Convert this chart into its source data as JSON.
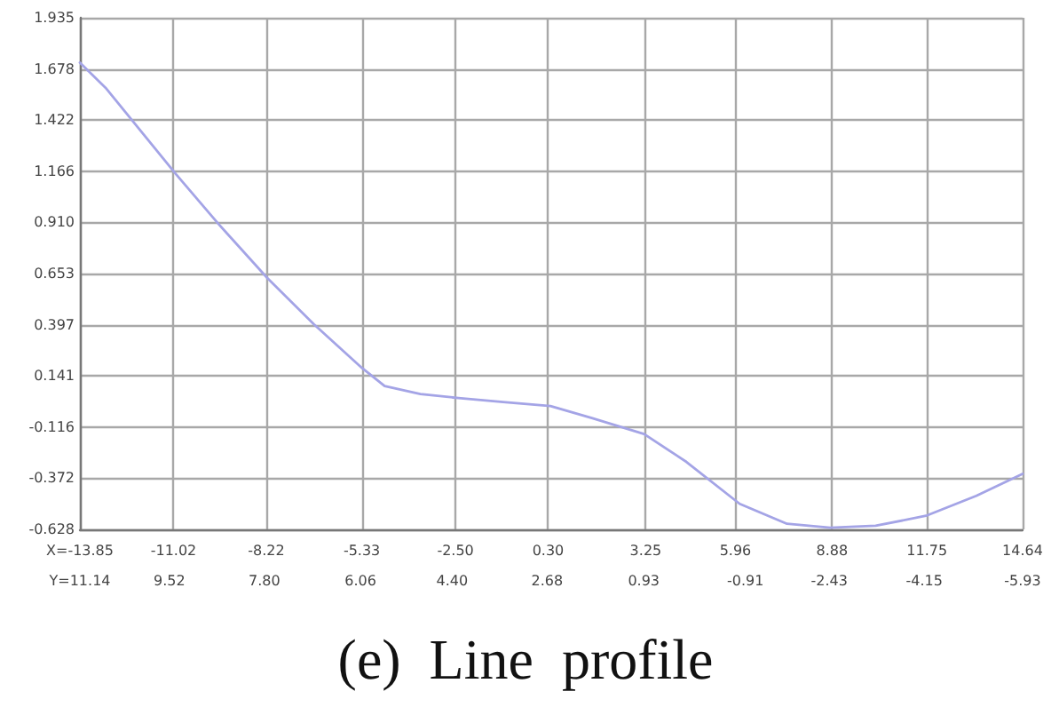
{
  "chart_data": {
    "type": "line",
    "title": "(e)  Line  profile",
    "x": [
      -13.85,
      -13.05,
      -10.94,
      -9.65,
      -8.18,
      -6.78,
      -5.32,
      -4.64,
      -3.56,
      -2.41,
      -1.06,
      0.37,
      1.62,
      3.2,
      4.48,
      6.09,
      7.52,
      8.83,
      10.2,
      11.72,
      13.24,
      14.64
    ],
    "values": [
      1.71,
      1.58,
      1.15,
      0.9,
      0.63,
      0.4,
      0.18,
      0.09,
      0.05,
      0.03,
      0.01,
      -0.01,
      -0.07,
      -0.15,
      -0.29,
      -0.5,
      -0.6,
      -0.62,
      -0.61,
      -0.56,
      -0.46,
      -0.35
    ],
    "color": "#a4a4e6",
    "xlim": [
      -13.85,
      14.64
    ],
    "xticks": [
      {
        "value": -13.85,
        "label": "X=-13.85"
      },
      -11.02,
      -8.22,
      -5.33,
      {
        "value": -2.5,
        "label": "-2.50"
      },
      {
        "value": 0.3,
        "label": "0.30"
      },
      3.25,
      5.96,
      8.88,
      11.75,
      14.64
    ],
    "x2lim": [
      11.14,
      -5.93
    ],
    "x2ticks": [
      {
        "value": 11.14,
        "label": "Y=11.14"
      },
      9.52,
      {
        "value": 7.8,
        "label": "7.80"
      },
      6.06,
      {
        "value": 4.4,
        "label": "4.40"
      },
      2.68,
      0.93,
      -0.91,
      -2.43,
      -4.15,
      -5.93
    ],
    "ylim": [
      -0.628,
      1.935
    ],
    "yticks": [
      -0.628,
      -0.372,
      -0.116,
      0.141,
      0.397,
      0.653,
      {
        "value": 0.91,
        "label": "0.910"
      },
      1.166,
      1.422,
      1.678,
      1.935
    ],
    "grid": true
  }
}
